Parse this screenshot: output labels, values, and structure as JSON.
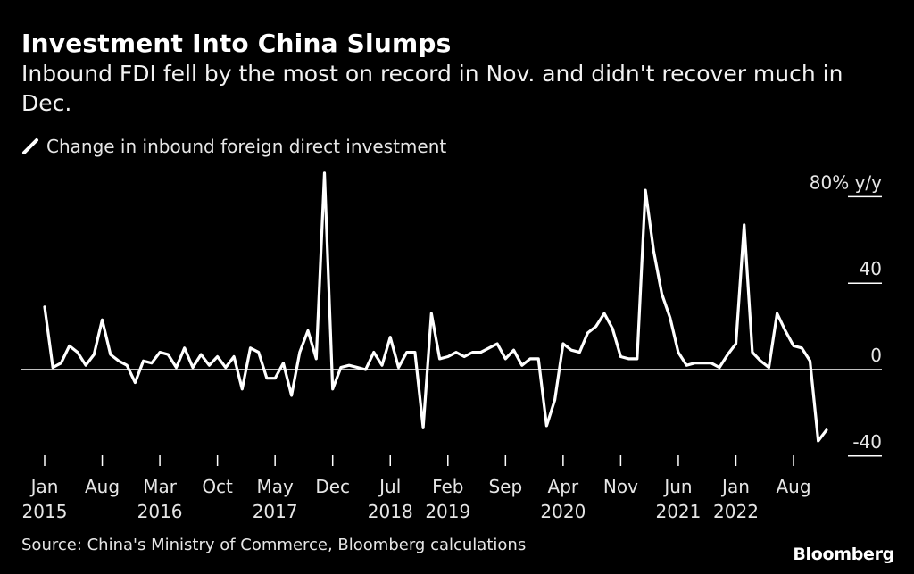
{
  "title": "Investment Into China Slumps",
  "subtitle": "Inbound FDI fell by the most on record in Nov. and didn't recover much in Dec.",
  "legend": {
    "label": "Change in inbound foreign direct investment"
  },
  "source": "Source: China's Ministry of Commerce, Bloomberg calculations",
  "brand": "Bloomberg",
  "colors": {
    "background": "#000000",
    "line": "#ffffff",
    "text": "#e6e6e6"
  },
  "chart_data": {
    "type": "line",
    "title": "Investment Into China Slumps",
    "ylabel": "% y/y",
    "ylim": [
      -40,
      80
    ],
    "y_ticks": [
      {
        "value": 80,
        "label": "80% y/y"
      },
      {
        "value": 40,
        "label": "40"
      },
      {
        "value": 0,
        "label": "0"
      },
      {
        "value": -40,
        "label": "-40"
      }
    ],
    "x_ticks": [
      {
        "index": 0,
        "label": "Jan",
        "year": "2015"
      },
      {
        "index": 7,
        "label": "Aug",
        "year": ""
      },
      {
        "index": 14,
        "label": "Mar",
        "year": "2016"
      },
      {
        "index": 21,
        "label": "Oct",
        "year": ""
      },
      {
        "index": 28,
        "label": "May",
        "year": "2017"
      },
      {
        "index": 35,
        "label": "Dec",
        "year": ""
      },
      {
        "index": 42,
        "label": "Jul",
        "year": "2018"
      },
      {
        "index": 49,
        "label": "Feb",
        "year": "2019"
      },
      {
        "index": 56,
        "label": "Sep",
        "year": ""
      },
      {
        "index": 63,
        "label": "Apr",
        "year": "2020"
      },
      {
        "index": 70,
        "label": "Nov",
        "year": ""
      },
      {
        "index": 77,
        "label": "Jun",
        "year": "2021"
      },
      {
        "index": 84,
        "label": "Jan",
        "year": "2022"
      },
      {
        "index": 91,
        "label": "Aug",
        "year": ""
      }
    ],
    "start": "2015-01",
    "end": "2022-12",
    "series": [
      {
        "name": "Change in inbound foreign direct investment",
        "values": [
          29,
          1,
          3,
          11,
          8,
          2,
          7,
          23,
          7,
          4,
          2,
          -6,
          4,
          3,
          8,
          7,
          1,
          10,
          1,
          7,
          2,
          6,
          1,
          6,
          -9,
          10,
          8,
          -4,
          -4,
          3,
          -12,
          8,
          18,
          5,
          91,
          -9,
          1,
          2,
          1,
          0,
          8,
          2,
          15,
          1,
          8,
          8,
          -27,
          26,
          5,
          6,
          8,
          6,
          8,
          8,
          10,
          12,
          5,
          9,
          2,
          5,
          5,
          -26,
          -14,
          12,
          9,
          8,
          17,
          20,
          26,
          19,
          6,
          5,
          5,
          83,
          55,
          35,
          24,
          8,
          2,
          3,
          3,
          3,
          1,
          7,
          12,
          67,
          8,
          4,
          1,
          26,
          18,
          11,
          10,
          4,
          -33,
          -28
        ]
      }
    ]
  }
}
